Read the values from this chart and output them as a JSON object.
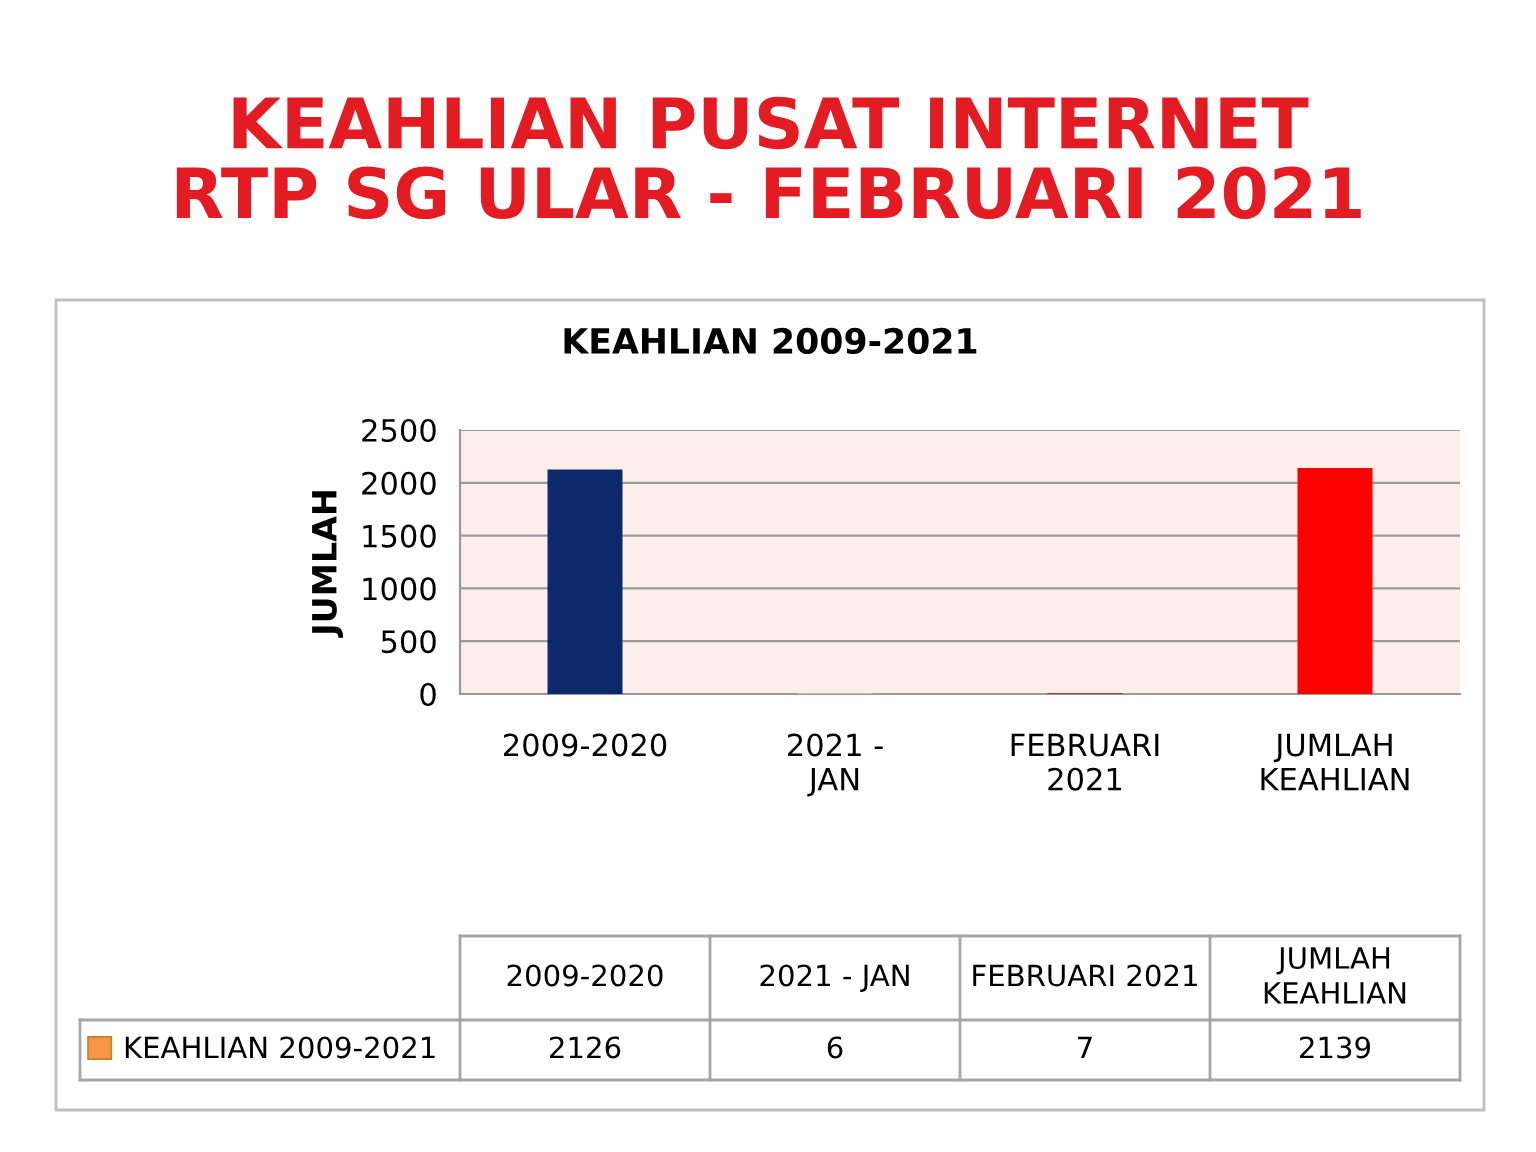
{
  "chart_data": {
    "type": "bar",
    "title": "KEAHLIAN PUSAT INTERNET\nRTP SG ULAR - FEBRUARI 2021",
    "subtitle": "KEAHLIAN 2009-2021",
    "ylabel": "JUMLAH",
    "categories": [
      "2009-2020",
      "2021 - JAN",
      "FEBRUARI 2021",
      "JUMLAH KEAHLIAN"
    ],
    "series": [
      {
        "name": "KEAHLIAN 2009-2021",
        "color": "#f79646",
        "colors": [
          "#0c2a6b",
          "#f2b8b8",
          "#a3161a",
          "#ff0000"
        ],
        "values": [
          2126,
          6,
          7,
          2139
        ]
      }
    ],
    "ylim": [
      0,
      2500
    ],
    "yticks": [
      0,
      500,
      1000,
      1500,
      2000,
      2500
    ],
    "grid": "y",
    "legend": "bottom left",
    "data_labels": true
  }
}
